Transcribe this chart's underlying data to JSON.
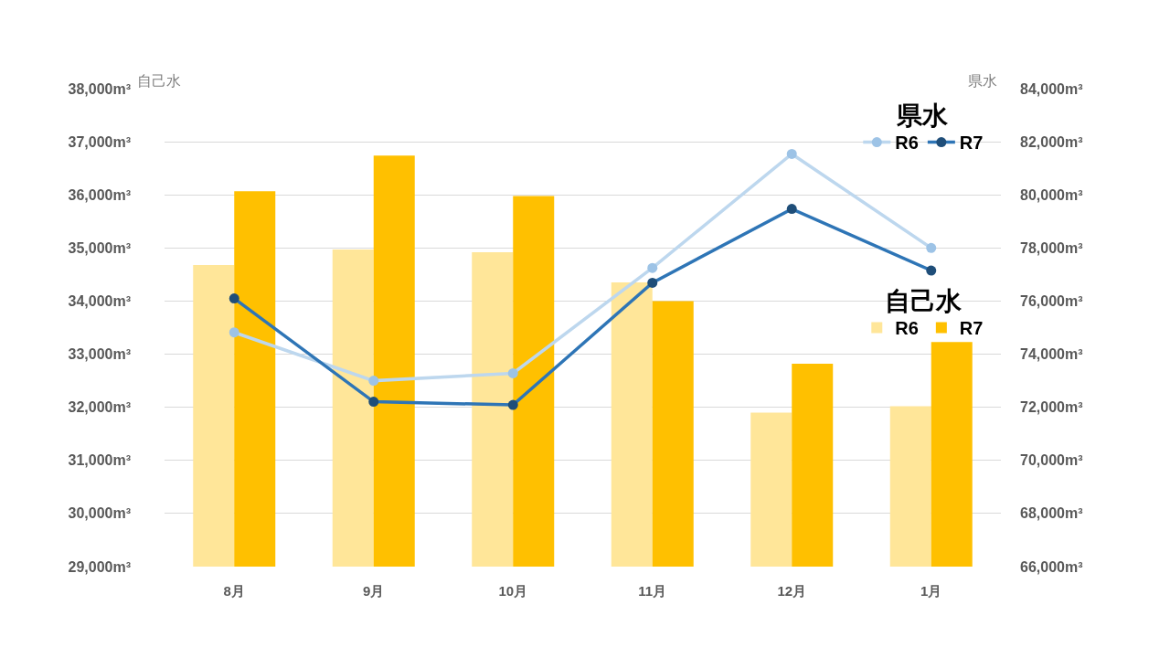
{
  "chart_data": {
    "type": "bar",
    "categories": [
      "8月",
      "9月",
      "10月",
      "11月",
      "12月",
      "1月"
    ],
    "ylabel": "自己水",
    "y2label": "県水",
    "annotations": [
      "県水",
      "自己水"
    ],
    "series": [
      {
        "name": "R6",
        "color": "#ffe699",
        "values": [
          34680,
          34970,
          34920,
          34350,
          31900,
          32020
        ]
      },
      {
        "name": "R7",
        "color": "#ffc000",
        "values": [
          36070,
          36740,
          35980,
          34000,
          32820,
          33230
        ]
      },
      {
        "name": "R6",
        "type": "line",
        "axis": "y2",
        "color": "#bdd7ee",
        "colors": [
          "#9dc3e6",
          "#9dc3e6",
          "#9dc3e6",
          "#9dc3e6",
          "#9dc3e6",
          "#9dc3e6"
        ],
        "values": [
          74820,
          73000,
          73280,
          77250,
          81540,
          78000
        ]
      },
      {
        "name": "R7",
        "type": "line",
        "axis": "y2",
        "color": "#2e75b6",
        "colors": [
          "#1f4e79",
          "#1f4e79",
          "#1f4e79",
          "#1f4e79",
          "#1f4e79",
          "#1f4e79"
        ],
        "values": [
          76100,
          72210,
          72090,
          76690,
          79470,
          77150
        ]
      }
    ],
    "ylim": [
      29000,
      38000
    ],
    "yticks": [
      {
        "value": 29000,
        "label": "29,000m³"
      },
      {
        "value": 30000,
        "label": "30,000m³"
      },
      {
        "value": 31000,
        "label": "31,000m³"
      },
      {
        "value": 32000,
        "label": "32,000m³"
      },
      {
        "value": 33000,
        "label": "33,000m³"
      },
      {
        "value": 34000,
        "label": "34,000m³"
      },
      {
        "value": 35000,
        "label": "35,000m³"
      },
      {
        "value": 36000,
        "label": "36,000m³"
      },
      {
        "value": 37000,
        "label": "37,000m³"
      },
      {
        "value": 38000,
        "label": "38,000m³"
      }
    ],
    "y2lim": [
      66000,
      84000
    ],
    "y2ticks": [
      {
        "value": 66000,
        "label": "66,000m³"
      },
      {
        "value": 68000,
        "label": "68,000m³"
      },
      {
        "value": 70000,
        "label": "70,000m³"
      },
      {
        "value": 72000,
        "label": "72,000m³"
      },
      {
        "value": 74000,
        "label": "74,000m³"
      },
      {
        "value": 76000,
        "label": "76,000m³"
      },
      {
        "value": 78000,
        "label": "78,000m³"
      },
      {
        "value": 80000,
        "label": "80,000m³"
      },
      {
        "value": 82000,
        "label": "82,000m³"
      },
      {
        "value": 84000,
        "label": "84,000m³"
      }
    ],
    "grid": "y",
    "legend": "top right",
    "marker": "circle",
    "line_style": "solid"
  }
}
